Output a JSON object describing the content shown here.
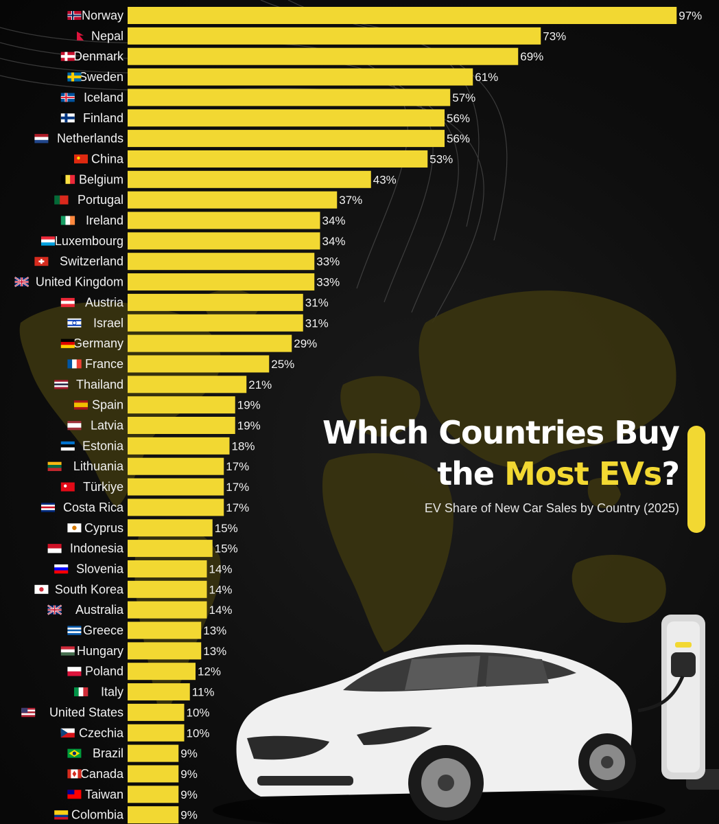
{
  "title": {
    "line1": "Which Countries Buy",
    "line2_prefix": "the ",
    "line2_accent": "Most EVs",
    "line2_suffix": "?",
    "subtitle": "EV Share of New Car Sales by Country (2025)"
  },
  "colors": {
    "bar": "#f2d832",
    "background": "#0b0b0b",
    "text": "#f2f2f2",
    "map": "#3a3410"
  },
  "chart_data": {
    "type": "bar",
    "orientation": "horizontal",
    "value_suffix": "%",
    "xlim": [
      0,
      100
    ],
    "grid": false,
    "legend": "none",
    "categories": [
      "Norway",
      "Nepal",
      "Denmark",
      "Sweden",
      "Iceland",
      "Finland",
      "Netherlands",
      "China",
      "Belgium",
      "Portugal",
      "Ireland",
      "Luxembourg",
      "Switzerland",
      "United Kingdom",
      "Austria",
      "Israel",
      "Germany",
      "France",
      "Thailand",
      "Spain",
      "Latvia",
      "Estonia",
      "Lithuania",
      "Türkiye",
      "Costa Rica",
      "Cyprus",
      "Indonesia",
      "Slovenia",
      "South Korea",
      "Australia",
      "Greece",
      "Hungary",
      "Poland",
      "Italy",
      "United States",
      "Czechia",
      "Brazil",
      "Canada",
      "Taiwan",
      "Colombia"
    ],
    "values": [
      97,
      73,
      69,
      61,
      57,
      56,
      56,
      53,
      43,
      37,
      34,
      34,
      33,
      33,
      31,
      31,
      29,
      25,
      21,
      19,
      19,
      18,
      17,
      17,
      17,
      15,
      15,
      14,
      14,
      14,
      13,
      13,
      12,
      11,
      10,
      10,
      9,
      9,
      9,
      9
    ],
    "flags": [
      "norway-flag",
      "nepal-flag",
      "denmark-flag",
      "sweden-flag",
      "iceland-flag",
      "finland-flag",
      "netherlands-flag",
      "china-flag",
      "belgium-flag",
      "portugal-flag",
      "ireland-flag",
      "luxembourg-flag",
      "switzerland-flag",
      "united-kingdom-flag",
      "austria-flag",
      "israel-flag",
      "germany-flag",
      "france-flag",
      "thailand-flag",
      "spain-flag",
      "latvia-flag",
      "estonia-flag",
      "lithuania-flag",
      "turkiye-flag",
      "costa-rica-flag",
      "cyprus-flag",
      "indonesia-flag",
      "slovenia-flag",
      "south-korea-flag",
      "australia-flag",
      "greece-flag",
      "hungary-flag",
      "poland-flag",
      "italy-flag",
      "united-states-flag",
      "czechia-flag",
      "brazil-flag",
      "canada-flag",
      "taiwan-flag",
      "colombia-flag"
    ]
  },
  "illustrations": [
    "world-map",
    "white-sedan-car",
    "ev-charging-station",
    "contour-lines"
  ]
}
